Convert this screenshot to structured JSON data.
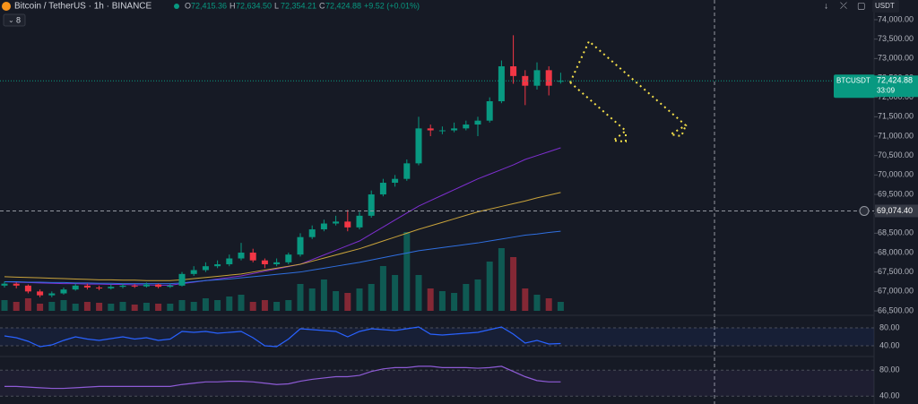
{
  "header": {
    "symbol": "Bitcoin / TetherUS · 1h · BINANCE",
    "ohlc_letters": [
      "O",
      "H",
      "L",
      "C"
    ],
    "ohlc_values": [
      "72,415.36",
      "72,634.50",
      "72,354.21",
      "72,424.88"
    ],
    "change": "+9.52 (+0.01%)",
    "indicator_count": 8,
    "currency": "USDT"
  },
  "chart_data": [
    {
      "type": "candlestick",
      "categories": [
        null,
        null,
        null,
        null,
        null,
        null,
        null,
        null,
        null,
        null,
        null,
        null,
        null,
        null,
        null,
        null,
        null,
        null,
        null,
        null,
        null,
        null,
        null,
        null,
        null,
        null,
        null,
        null,
        null,
        null,
        null,
        null,
        null,
        null,
        null,
        null,
        null,
        null,
        null,
        null,
        null,
        null,
        null,
        null,
        null,
        null,
        null,
        null
      ],
      "open": [
        67150,
        67200,
        67150,
        67000,
        66900,
        66950,
        67050,
        67150,
        67100,
        67080,
        67120,
        67150,
        67130,
        67180,
        67120,
        67150,
        67450,
        67550,
        67650,
        67700,
        67850,
        68000,
        67800,
        67700,
        67750,
        67950,
        68400,
        68600,
        68750,
        68800,
        68650,
        68950,
        69500,
        69800,
        69900,
        70300,
        71200,
        71150,
        71150,
        71200,
        71300,
        71400,
        71900,
        72800,
        72550,
        72300,
        72700,
        72415.36
      ],
      "high": [
        67260,
        67230,
        67180,
        67050,
        67000,
        67100,
        67200,
        67200,
        67150,
        67180,
        67200,
        67190,
        67230,
        67200,
        67200,
        67500,
        67650,
        67750,
        67800,
        67950,
        68250,
        68100,
        67850,
        67850,
        68000,
        68500,
        68700,
        68850,
        68950,
        69100,
        69050,
        69600,
        69900,
        70000,
        70400,
        71500,
        71300,
        71250,
        71350,
        71400,
        71500,
        72000,
        72950,
        73600,
        72700,
        72900,
        72800,
        72634.5
      ],
      "low": [
        67100,
        67080,
        66950,
        66850,
        66850,
        66920,
        67020,
        67050,
        67030,
        67050,
        67080,
        67090,
        67100,
        67080,
        67090,
        67130,
        67400,
        67500,
        67600,
        67650,
        67800,
        67750,
        67600,
        67650,
        67700,
        67900,
        68350,
        68550,
        68700,
        68550,
        68600,
        68900,
        69450,
        69700,
        69850,
        70250,
        71000,
        71050,
        71100,
        71150,
        71000,
        71350,
        71850,
        72350,
        71800,
        72200,
        72050,
        72354.21
      ],
      "close": [
        67200,
        67150,
        67000,
        66900,
        66950,
        67050,
        67150,
        67100,
        67080,
        67120,
        67150,
        67130,
        67180,
        67120,
        67150,
        67450,
        67550,
        67650,
        67700,
        67850,
        68000,
        67800,
        67700,
        67750,
        67950,
        68400,
        68600,
        68750,
        68800,
        68650,
        68950,
        69500,
        69800,
        69900,
        70300,
        71200,
        71150,
        71150,
        71200,
        71300,
        71400,
        71900,
        72800,
        72550,
        72300,
        72700,
        72300,
        72424.88
      ],
      "up_color": "#089981",
      "down_color": "#f23645",
      "volume": [
        12,
        10,
        14,
        8,
        10,
        12,
        8,
        10,
        9,
        8,
        10,
        7,
        9,
        8,
        8,
        12,
        10,
        14,
        12,
        16,
        18,
        10,
        12,
        10,
        12,
        30,
        25,
        35,
        22,
        20,
        25,
        30,
        50,
        40,
        88,
        40,
        25,
        22,
        20,
        30,
        35,
        55,
        70,
        60,
        25,
        18,
        14,
        10
      ],
      "series": [
        {
          "color": "#7e2fd0",
          "values": [
            67250,
            67240,
            67230,
            67220,
            67210,
            67200,
            67200,
            67190,
            67190,
            67180,
            67180,
            67170,
            67170,
            67160,
            67160,
            67200,
            67240,
            67280,
            67320,
            67360,
            67400,
            67460,
            67520,
            67580,
            67640,
            67700,
            67820,
            67940,
            68060,
            68180,
            68300,
            68480,
            68660,
            68840,
            69020,
            69200,
            69340,
            69480,
            69620,
            69760,
            69900,
            70020,
            70140,
            70260,
            70400,
            70500,
            70600,
            70700
          ]
        },
        {
          "color": "#c9a33b",
          "values": [
            67380,
            67370,
            67360,
            67350,
            67340,
            67330,
            67320,
            67310,
            67300,
            67300,
            67290,
            67290,
            67280,
            67280,
            67280,
            67300,
            67330,
            67360,
            67390,
            67420,
            67450,
            67500,
            67550,
            67600,
            67650,
            67700,
            67780,
            67860,
            67940,
            68020,
            68100,
            68200,
            68300,
            68400,
            68500,
            68600,
            68690,
            68780,
            68870,
            68960,
            69050,
            69120,
            69190,
            69260,
            69330,
            69410,
            69480,
            69550
          ]
        },
        {
          "color": "#2f6fe0",
          "values": [
            67250,
            67250,
            67240,
            67240,
            67230,
            67230,
            67220,
            67220,
            67210,
            67210,
            67200,
            67200,
            67200,
            67200,
            67200,
            67220,
            67250,
            67280,
            67300,
            67320,
            67350,
            67380,
            67410,
            67440,
            67470,
            67500,
            67550,
            67600,
            67650,
            67700,
            67750,
            67810,
            67870,
            67930,
            67990,
            68050,
            68090,
            68130,
            68170,
            68210,
            68250,
            68300,
            68350,
            68400,
            68450,
            68480,
            68520,
            68550
          ]
        }
      ],
      "ylim": [
        66385,
        74508
      ],
      "yticks": [
        {
          "value": 74000,
          "label": "74,000.00"
        },
        {
          "value": 73500,
          "label": "73,500.00"
        },
        {
          "value": 73000,
          "label": "73,000.00"
        },
        {
          "value": 72500,
          "label": "72,500.00"
        },
        {
          "value": 72000,
          "label": "72,000.00"
        },
        {
          "value": 71500,
          "label": "71,500.00"
        },
        {
          "value": 71000,
          "label": "71,000.00"
        },
        {
          "value": 70500,
          "label": "70,500.00"
        },
        {
          "value": 70000,
          "label": "70,000.00"
        },
        {
          "value": 69500,
          "label": "69,500.00"
        },
        {
          "value": 69000,
          "label": "69,000.00"
        },
        {
          "value": 68500,
          "label": "68,500.00"
        },
        {
          "value": 68000,
          "label": "68,000.00"
        },
        {
          "value": 67500,
          "label": "67,500.00"
        },
        {
          "value": 67000,
          "label": "67,000.00"
        },
        {
          "value": 66500,
          "label": "66,500.00"
        }
      ],
      "last_price": {
        "symbol": "BTCUSDT",
        "value": 72424.88,
        "label": "72,424.88",
        "countdown": "33:09"
      },
      "crosshair": {
        "value": 69074.4,
        "label": "69,074.40"
      }
    },
    {
      "type": "line",
      "color": "#2962ff",
      "values": [
        62,
        58,
        50,
        38,
        42,
        52,
        60,
        55,
        52,
        56,
        60,
        55,
        58,
        52,
        55,
        72,
        70,
        72,
        68,
        70,
        72,
        58,
        40,
        38,
        55,
        78,
        76,
        74,
        72,
        60,
        72,
        78,
        76,
        74,
        78,
        82,
        66,
        64,
        66,
        68,
        70,
        76,
        82,
        66,
        46,
        52,
        44,
        45
      ],
      "ylim": [
        16,
        108
      ],
      "yticks": [
        {
          "value": 80,
          "label": "80.00"
        },
        {
          "value": 40,
          "label": "40.00"
        }
      ]
    },
    {
      "type": "line",
      "color": "#8e5bd6",
      "values": [
        55,
        55,
        54,
        53,
        52,
        52,
        53,
        54,
        55,
        55,
        55,
        55,
        55,
        55,
        55,
        58,
        60,
        62,
        62,
        63,
        63,
        62,
        60,
        58,
        59,
        63,
        66,
        68,
        70,
        70,
        72,
        78,
        82,
        84,
        84,
        86,
        86,
        84,
        84,
        84,
        83,
        84,
        86,
        78,
        70,
        64,
        62,
        62
      ],
      "ylim": [
        28,
        101
      ],
      "yticks": [
        {
          "value": 80,
          "label": "80.00"
        },
        {
          "value": 40,
          "label": "40.00"
        }
      ]
    }
  ]
}
